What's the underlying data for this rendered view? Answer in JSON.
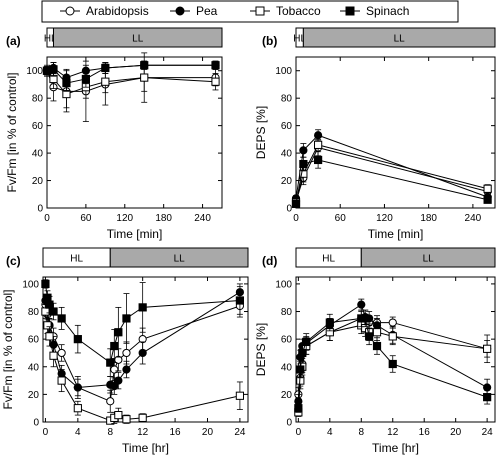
{
  "legend": {
    "items": [
      {
        "name": "Arabidopsis",
        "marker": "circle",
        "fill": "#ffffff"
      },
      {
        "name": "Pea",
        "marker": "circle",
        "fill": "#000000"
      },
      {
        "name": "Tobacco",
        "marker": "square",
        "fill": "#ffffff"
      },
      {
        "name": "Spinach",
        "marker": "square",
        "fill": "#000000"
      }
    ]
  },
  "colors": {
    "hl_bar": "#ffffff",
    "ll_bar": "#a9a9a9",
    "line": "#000000"
  },
  "chart_data": [
    {
      "panel": "(a)",
      "type": "line",
      "xlabel": "Time [min]",
      "ylabel": "Fv/Fm [in % of control]",
      "xlim": [
        0,
        270
      ],
      "ylim": [
        0,
        110
      ],
      "xticks": [
        0,
        60,
        120,
        180,
        240
      ],
      "yticks": [
        0,
        20,
        40,
        60,
        80,
        100
      ],
      "light_bar": [
        {
          "label": "HL",
          "from": 0,
          "to": 10
        },
        {
          "label": "LL",
          "from": 10,
          "to": 270
        }
      ],
      "series": [
        {
          "name": "Arabidopsis",
          "x": [
            0,
            10,
            30,
            60,
            90,
            150,
            260
          ],
          "y": [
            100,
            88,
            85,
            85,
            90,
            95,
            95
          ],
          "err": [
            4,
            10,
            15,
            22,
            15,
            18,
            6
          ]
        },
        {
          "name": "Pea",
          "x": [
            0,
            10,
            30,
            60,
            90,
            150,
            260
          ],
          "y": [
            100,
            102,
            95,
            100,
            102,
            104,
            104
          ],
          "err": [
            3,
            4,
            6,
            4,
            4,
            3,
            3
          ]
        },
        {
          "name": "Tobacco",
          "x": [
            0,
            10,
            30,
            60,
            90,
            150,
            260
          ],
          "y": [
            100,
            94,
            83,
            88,
            92,
            95,
            92
          ],
          "err": [
            3,
            7,
            10,
            8,
            8,
            10,
            6
          ]
        },
        {
          "name": "Spinach",
          "x": [
            0,
            10,
            30,
            60,
            90,
            150,
            260
          ],
          "y": [
            100,
            101,
            91,
            94,
            102,
            104,
            104
          ],
          "err": [
            3,
            5,
            6,
            6,
            4,
            3,
            3
          ]
        }
      ]
    },
    {
      "panel": "(b)",
      "type": "line",
      "xlabel": "Time [min]",
      "ylabel": "DEPS [%]",
      "xlim": [
        0,
        270
      ],
      "ylim": [
        0,
        110
      ],
      "xticks": [
        0,
        60,
        120,
        180,
        240
      ],
      "yticks": [
        0,
        20,
        40,
        60,
        80,
        100
      ],
      "light_bar": [
        {
          "label": "HL",
          "from": 0,
          "to": 10
        },
        {
          "label": "LL",
          "from": 10,
          "to": 270
        }
      ],
      "series": [
        {
          "name": "Arabidopsis",
          "x": [
            0,
            10,
            30,
            260
          ],
          "y": [
            5,
            22,
            44,
            12
          ],
          "err": [
            2,
            5,
            6,
            3
          ]
        },
        {
          "name": "Pea",
          "x": [
            0,
            10,
            30,
            260
          ],
          "y": [
            7,
            42,
            53,
            8
          ],
          "err": [
            2,
            5,
            4,
            2
          ]
        },
        {
          "name": "Tobacco",
          "x": [
            0,
            10,
            30,
            260
          ],
          "y": [
            4,
            25,
            46,
            14
          ],
          "err": [
            2,
            6,
            8,
            3
          ]
        },
        {
          "name": "Spinach",
          "x": [
            0,
            10,
            30,
            260
          ],
          "y": [
            3,
            32,
            35,
            6
          ],
          "err": [
            1,
            5,
            6,
            2
          ]
        }
      ]
    },
    {
      "panel": "(c)",
      "type": "line",
      "xlabel": "Time [hr]",
      "ylabel": "Fv/Fm [in % of control]",
      "xlim": [
        -0.3,
        25
      ],
      "ylim": [
        0,
        105
      ],
      "xticks": [
        0,
        4,
        8,
        12,
        16,
        20,
        24
      ],
      "yticks": [
        0,
        20,
        40,
        60,
        80,
        100
      ],
      "light_bar": [
        {
          "label": "HL",
          "from": -0.3,
          "to": 8
        },
        {
          "label": "LL",
          "from": 8,
          "to": 25
        }
      ],
      "series": [
        {
          "name": "Arabidopsis",
          "x": [
            0,
            0.25,
            0.5,
            1,
            2,
            4,
            8,
            8.5,
            9,
            10,
            12,
            24
          ],
          "y": [
            85,
            78,
            70,
            62,
            50,
            25,
            15,
            38,
            45,
            50,
            60,
            84
          ],
          "err": [
            3,
            4,
            5,
            6,
            6,
            8,
            8,
            8,
            8,
            8,
            8,
            6
          ]
        },
        {
          "name": "Pea",
          "x": [
            0,
            0.25,
            0.5,
            1,
            2,
            4,
            8,
            8.5,
            9,
            10,
            12,
            24
          ],
          "y": [
            88,
            80,
            70,
            56,
            35,
            25,
            27,
            26,
            30,
            38,
            50,
            94
          ],
          "err": [
            3,
            4,
            5,
            6,
            6,
            6,
            6,
            6,
            6,
            6,
            8,
            4
          ]
        },
        {
          "name": "Tobacco",
          "x": [
            0,
            0.25,
            0.5,
            1,
            2,
            4,
            8,
            8.5,
            9,
            10,
            12,
            24
          ],
          "y": [
            80,
            70,
            62,
            48,
            30,
            10,
            1,
            3,
            5,
            2,
            3,
            19
          ],
          "err": [
            5,
            6,
            7,
            8,
            8,
            5,
            2,
            4,
            5,
            3,
            3,
            10
          ]
        },
        {
          "name": "Spinach",
          "x": [
            0,
            0.25,
            0.5,
            1,
            2,
            4,
            8,
            8.5,
            9,
            10,
            12,
            24
          ],
          "y": [
            100,
            90,
            85,
            80,
            75,
            60,
            43,
            55,
            65,
            75,
            83,
            88
          ],
          "err": [
            3,
            5,
            6,
            6,
            8,
            10,
            10,
            12,
            18,
            18,
            18,
            12
          ]
        }
      ]
    },
    {
      "panel": "(d)",
      "type": "line",
      "xlabel": "Time [hr]",
      "ylabel": "DEPS [%]",
      "xlim": [
        -0.3,
        25
      ],
      "ylim": [
        0,
        105
      ],
      "xticks": [
        0,
        4,
        8,
        12,
        16,
        20,
        24
      ],
      "yticks": [
        0,
        20,
        40,
        60,
        80,
        100
      ],
      "light_bar": [
        {
          "label": "HL",
          "from": -0.3,
          "to": 8
        },
        {
          "label": "LL",
          "from": 8,
          "to": 25
        }
      ],
      "series": [
        {
          "name": "Arabidopsis",
          "x": [
            0,
            0.25,
            0.5,
            1,
            4,
            8,
            8.5,
            9,
            10,
            12,
            24
          ],
          "y": [
            20,
            32,
            42,
            55,
            65,
            75,
            70,
            72,
            72,
            72,
            53
          ],
          "err": [
            5,
            6,
            6,
            6,
            6,
            5,
            5,
            5,
            5,
            4,
            6
          ]
        },
        {
          "name": "Pea",
          "x": [
            0,
            0.25,
            0.5,
            1,
            4,
            8,
            8.5,
            9,
            10,
            12,
            24
          ],
          "y": [
            15,
            47,
            55,
            57,
            70,
            85,
            76,
            75,
            70,
            63,
            25
          ],
          "err": [
            5,
            5,
            5,
            5,
            5,
            4,
            5,
            5,
            5,
            6,
            6
          ]
        },
        {
          "name": "Tobacco",
          "x": [
            0,
            0.25,
            0.5,
            1,
            4,
            8,
            8.5,
            9,
            10,
            12,
            24
          ],
          "y": [
            7,
            30,
            40,
            55,
            65,
            70,
            68,
            65,
            65,
            62,
            53
          ],
          "err": [
            3,
            6,
            6,
            6,
            6,
            6,
            6,
            6,
            6,
            6,
            10
          ]
        },
        {
          "name": "Spinach",
          "x": [
            0,
            0.25,
            0.5,
            1,
            4,
            8,
            8.5,
            9,
            10,
            12,
            24
          ],
          "y": [
            10,
            38,
            50,
            58,
            72,
            75,
            75,
            62,
            55,
            42,
            18
          ],
          "err": [
            3,
            6,
            6,
            6,
            6,
            6,
            6,
            6,
            6,
            6,
            5
          ]
        }
      ]
    }
  ]
}
